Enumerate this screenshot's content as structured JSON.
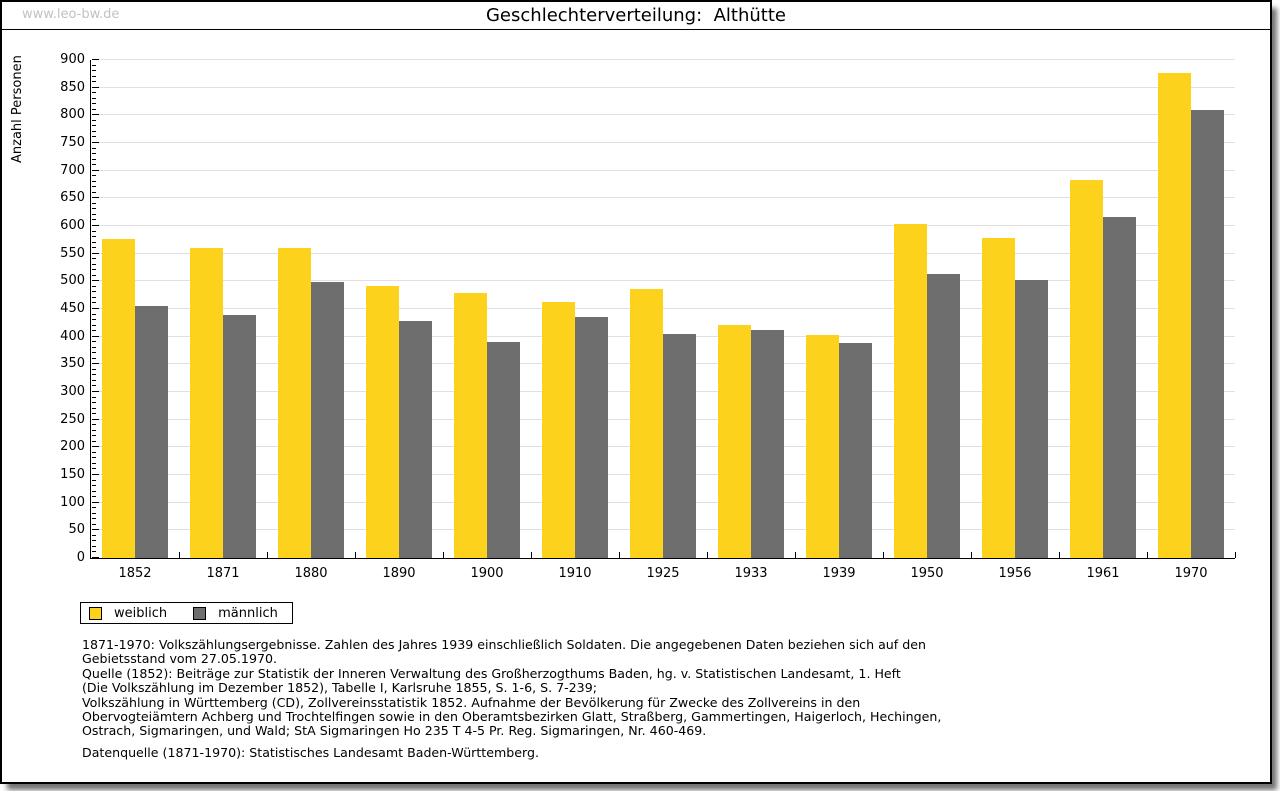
{
  "watermark": "www.leo-bw.de",
  "title": "Geschlechterverteilung:  Althütte",
  "chart_data": {
    "type": "bar",
    "title": "Geschlechterverteilung: Althütte",
    "xlabel": "",
    "ylabel": "Anzahl Personen",
    "ylim": [
      0,
      900
    ],
    "ytick_step": 50,
    "yminor_step": 10,
    "grid": true,
    "legend_position": "bottom-left",
    "categories": [
      "1852",
      "1871",
      "1880",
      "1890",
      "1900",
      "1910",
      "1925",
      "1933",
      "1939",
      "1950",
      "1956",
      "1961",
      "1970"
    ],
    "series": [
      {
        "name": "weiblich",
        "color": "#fcd21d",
        "values": [
          577,
          560,
          560,
          491,
          479,
          463,
          486,
          421,
          403,
          603,
          578,
          684,
          877
        ]
      },
      {
        "name": "männlich",
        "color": "#6e6e6e",
        "values": [
          456,
          439,
          498,
          429,
          390,
          436,
          404,
          412,
          389,
          514,
          502,
          617,
          810
        ]
      }
    ]
  },
  "legend": {
    "items": [
      {
        "label": "weiblich",
        "color": "#fcd21d"
      },
      {
        "label": "männlich",
        "color": "#6e6e6e"
      }
    ]
  },
  "footer": {
    "lines": [
      "1871-1970: Volkszählungsergebnisse. Zahlen des Jahres 1939 einschließlich Soldaten. Die angegebenen Daten beziehen sich auf den",
      "Gebietsstand vom 27.05.1970.",
      "Quelle (1852): Beiträge zur Statistik der Inneren Verwaltung des Großherzogthums Baden, hg. v. Statistischen Landesamt, 1. Heft",
      "(Die Volkszählung im Dezember 1852), Tabelle I, Karlsruhe 1855, S. 1-6, S. 7-239;",
      "Volkszählung in Württemberg (CD), Zollvereinsstatistik 1852. Aufnahme der Bevölkerung für Zwecke des Zollvereins in den",
      "Obervogteiämtern Achberg und Trochtelfingen sowie in den Oberamtsbezirken Glatt, Straßberg, Gammertingen, Haigerloch, Hechingen,",
      "Ostrach, Sigmaringen, und Wald; StA Sigmaringen Ho 235 T 4-5 Pr. Reg. Sigmaringen, Nr. 460-469."
    ],
    "datasource": "Datenquelle (1871-1970): Statistisches Landesamt Baden-Württemberg."
  },
  "colors": {
    "grid": "#e0e0e0",
    "axis": "#000000",
    "watermark": "#c2c2c2"
  }
}
